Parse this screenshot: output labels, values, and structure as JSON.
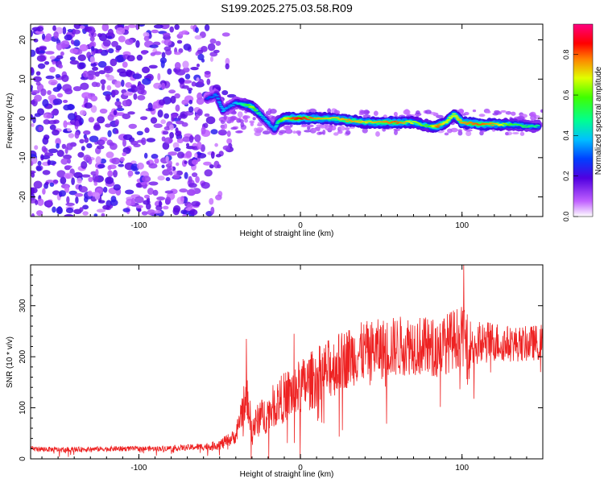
{
  "title": "S199.2025.275.03.58.R09",
  "colors": {
    "snr_line": "#ee2222",
    "frame": "#000000",
    "background": "#ffffff"
  },
  "chart_data": [
    {
      "type": "heatmap",
      "xlabel": "Height of straight line (km)",
      "ylabel": "Frequency (Hz)",
      "xlim": [
        -167,
        150
      ],
      "ylim": [
        -25,
        24
      ],
      "xticks": [
        -100,
        0,
        100
      ],
      "xtick_labels": [
        "-100",
        "0",
        "100"
      ],
      "yticks": [
        -20,
        -10,
        0,
        10,
        20
      ],
      "ytick_labels": [
        "-20",
        "-10",
        "0",
        "10",
        "20"
      ],
      "colorbar": {
        "label": "Normalized spectral amplitude",
        "range": [
          0.0,
          0.95
        ],
        "ticks": [
          0.0,
          0.2,
          0.4,
          0.6,
          0.8
        ],
        "tick_labels": [
          "0.0",
          "0.2",
          "0.4",
          "0.6",
          "0.8"
        ],
        "colormap": "rainbow (violet-blue-cyan-green-yellow-red-magenta)"
      },
      "ridge": {
        "description": "narrow high-amplitude frequency track",
        "x": [
          -58,
          -52,
          -48,
          -44,
          -40,
          -35,
          -30,
          -25,
          -20,
          -16,
          -14,
          -10,
          -5,
          0,
          10,
          20,
          30,
          40,
          50,
          60,
          70,
          80,
          85,
          90,
          95,
          100,
          110,
          120,
          130,
          140,
          148
        ],
        "y": [
          5,
          6,
          2,
          3,
          4,
          3.5,
          3,
          1,
          -1,
          -3,
          -1,
          0,
          0,
          0,
          0,
          0,
          -0.5,
          -1,
          -1,
          -1,
          -1,
          -2,
          -2,
          -1,
          1,
          -1,
          -1.5,
          -1.5,
          -1.5,
          -2,
          -2
        ],
        "amplitude": [
          0.3,
          0.35,
          0.4,
          0.35,
          0.4,
          0.5,
          0.7,
          0.45,
          0.4,
          0.35,
          0.5,
          0.7,
          0.85,
          0.9,
          0.8,
          0.75,
          0.8,
          0.75,
          0.8,
          0.85,
          0.7,
          0.6,
          0.85,
          0.7,
          0.7,
          0.8,
          0.85,
          0.8,
          0.6,
          0.55,
          0.5
        ]
      },
      "noise_region": {
        "x_range": [
          -167,
          -45
        ],
        "amplitude_range": [
          0.05,
          0.25
        ]
      }
    },
    {
      "type": "line",
      "xlabel": "Height of straight line (km)",
      "ylabel": "SNR (10 * v/v)",
      "xlim": [
        -167,
        150
      ],
      "ylim": [
        0,
        380
      ],
      "xticks": [
        -100,
        0,
        100
      ],
      "xtick_labels": [
        "-100",
        "0",
        "100"
      ],
      "yticks": [
        0,
        100,
        200,
        300
      ],
      "ytick_labels": [
        "0",
        "100",
        "200",
        "300"
      ],
      "series": [
        {
          "x": [
            -167,
            -150,
            -130,
            -110,
            -90,
            -70,
            -55,
            -48,
            -40,
            -36,
            -33,
            -30,
            -25,
            -20,
            -15,
            -10,
            -5,
            0,
            10,
            20,
            30,
            40,
            50,
            60,
            70,
            80,
            90,
            95,
            100,
            105,
            110,
            120,
            130,
            140,
            150
          ],
          "y": [
            20,
            18,
            19,
            20,
            20,
            22,
            25,
            30,
            45,
            100,
            120,
            60,
            80,
            90,
            110,
            120,
            130,
            140,
            160,
            180,
            200,
            210,
            215,
            220,
            225,
            215,
            225,
            235,
            240,
            225,
            225,
            230,
            225,
            225,
            230
          ],
          "noise_amplitude": [
            5,
            5,
            5,
            5,
            5,
            6,
            8,
            12,
            15,
            40,
            40,
            30,
            35,
            40,
            45,
            50,
            55,
            55,
            60,
            60,
            60,
            60,
            60,
            60,
            60,
            60,
            60,
            60,
            60,
            50,
            45,
            40,
            35,
            35,
            35
          ],
          "peaks": [
            {
              "x": -33.5,
              "y": 235
            },
            {
              "x": -25,
              "y": 110
            },
            {
              "x": -4,
              "y": 245
            },
            {
              "x": 101,
              "y": 380
            }
          ]
        }
      ]
    }
  ]
}
